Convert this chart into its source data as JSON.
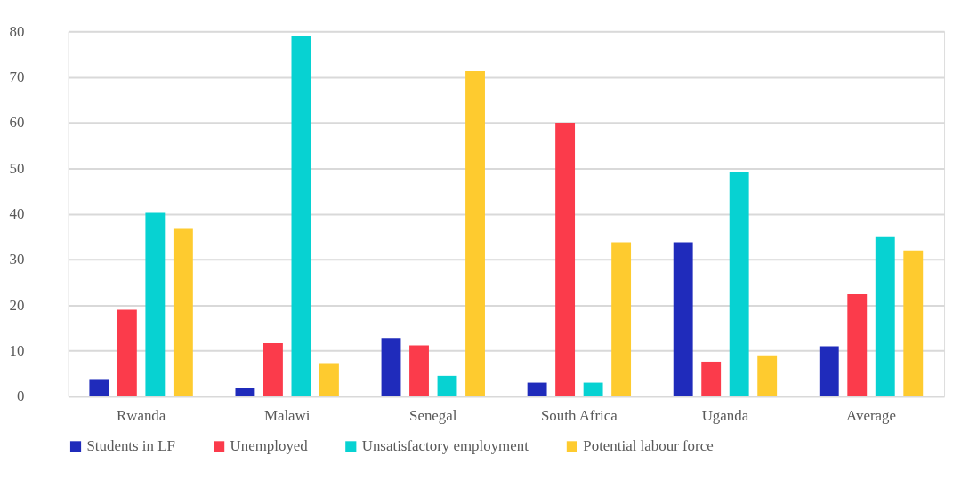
{
  "chart_data": {
    "type": "bar",
    "categories": [
      "Rwanda",
      "Malawi",
      "Senegal",
      "South Africa",
      "Uganda",
      "Average"
    ],
    "series": [
      {
        "name": "Students in LF",
        "color": "#1f2bbb",
        "values": [
          3.8,
          1.8,
          12.8,
          3.0,
          33.8,
          11.0
        ]
      },
      {
        "name": "Unemployed",
        "color": "#fb3b4b",
        "values": [
          19.0,
          11.7,
          11.2,
          60.0,
          7.6,
          22.4
        ]
      },
      {
        "name": "Unsatisfactory employment",
        "color": "#07d2d2",
        "values": [
          40.2,
          79.0,
          4.5,
          3.0,
          49.2,
          34.9
        ]
      },
      {
        "name": "Potential labour force",
        "color": "#fecb2f",
        "values": [
          36.7,
          7.3,
          71.3,
          33.8,
          9.0,
          32.0
        ]
      }
    ],
    "ylim": [
      0,
      80
    ],
    "yticks": [
      0,
      10,
      20,
      30,
      40,
      50,
      60,
      70,
      80
    ],
    "grid": "y",
    "legend": "bottom"
  }
}
